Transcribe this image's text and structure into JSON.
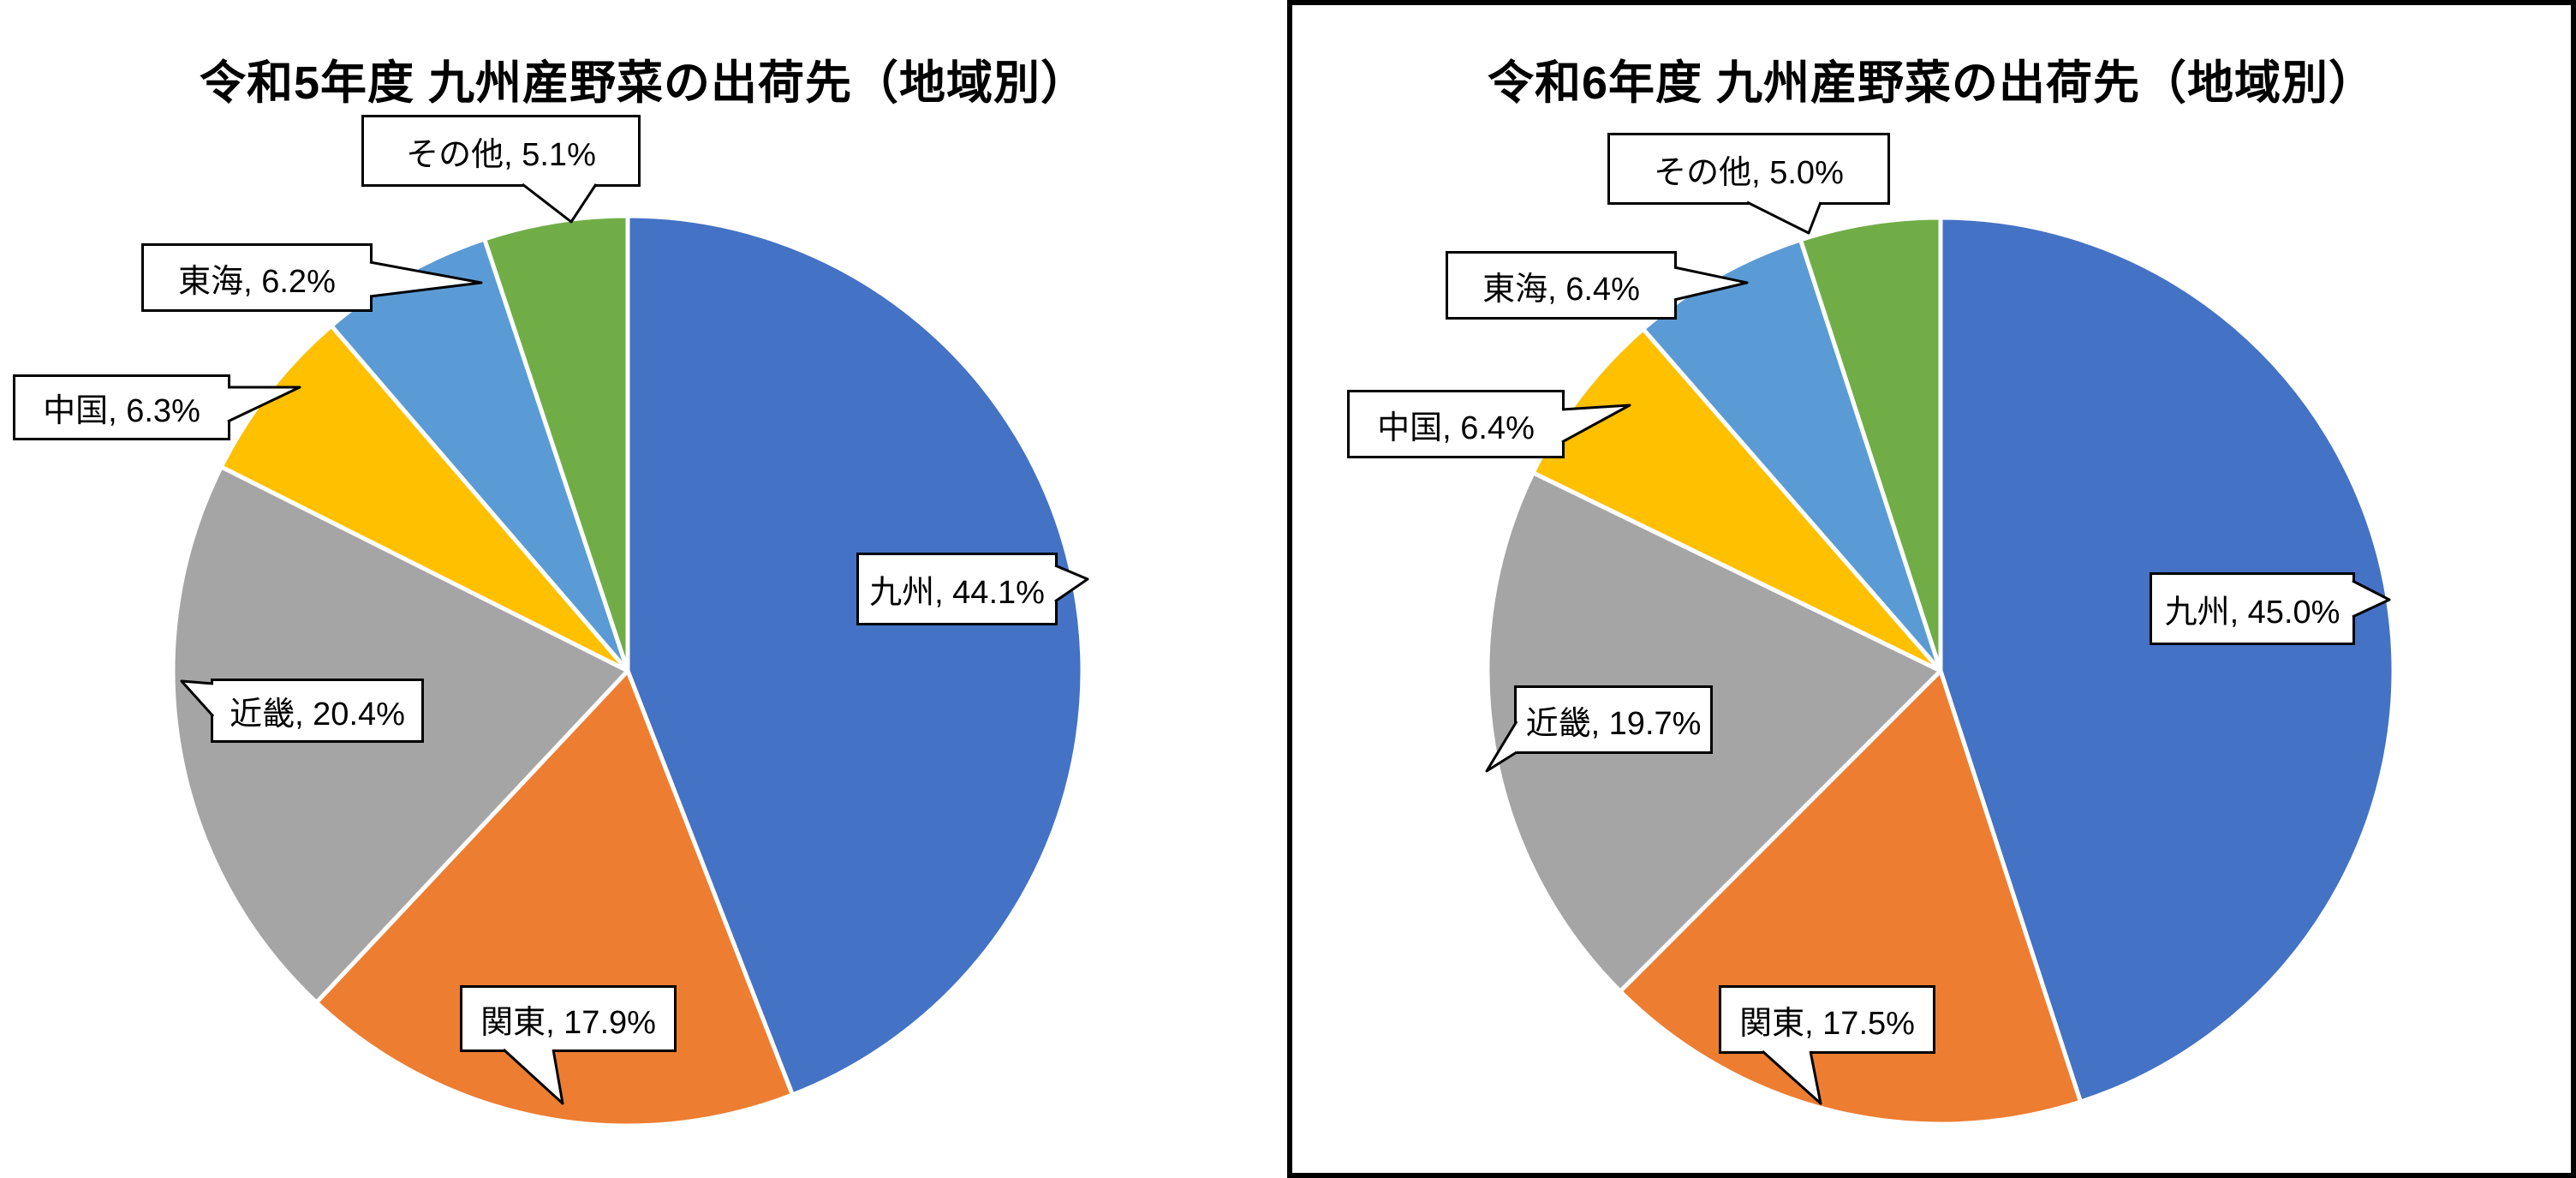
{
  "page": {
    "background_color": "#ffffff",
    "frame_border_color": "#000000"
  },
  "chart_data": [
    {
      "type": "pie",
      "title": "令和5年度 九州産野菜の出荷先（地域別）",
      "categories": [
        "九州",
        "関東",
        "近畿",
        "中国",
        "東海",
        "その他"
      ],
      "values": [
        44.1,
        17.9,
        20.4,
        6.3,
        6.2,
        5.1
      ],
      "unit": "%",
      "labels": [
        "九州, 44.1%",
        "関東, 17.9%",
        "近畿, 20.4%",
        "中国, 6.3%",
        "東海, 6.2%",
        "その他, 5.1%"
      ],
      "colors": [
        "#4472C4",
        "#ED7D31",
        "#A5A5A5",
        "#FFC000",
        "#5B9BD5",
        "#70AD47"
      ],
      "start_angle": "top",
      "direction": "clockwise",
      "legend": "none",
      "label_style": "callout-boxes"
    },
    {
      "type": "pie",
      "title": "令和6年度 九州産野菜の出荷先（地域別）",
      "categories": [
        "九州",
        "関東",
        "近畿",
        "中国",
        "東海",
        "その他"
      ],
      "values": [
        45.0,
        17.5,
        19.7,
        6.4,
        6.4,
        5.0
      ],
      "unit": "%",
      "labels": [
        "九州, 45.0%",
        "関東, 17.5%",
        "近畿, 19.7%",
        "中国, 6.4%",
        "東海, 6.4%",
        "その他, 5.0%"
      ],
      "colors": [
        "#4472C4",
        "#ED7D31",
        "#A5A5A5",
        "#FFC000",
        "#5B9BD5",
        "#70AD47"
      ],
      "start_angle": "top",
      "direction": "clockwise",
      "legend": "none",
      "label_style": "callout-boxes"
    }
  ]
}
